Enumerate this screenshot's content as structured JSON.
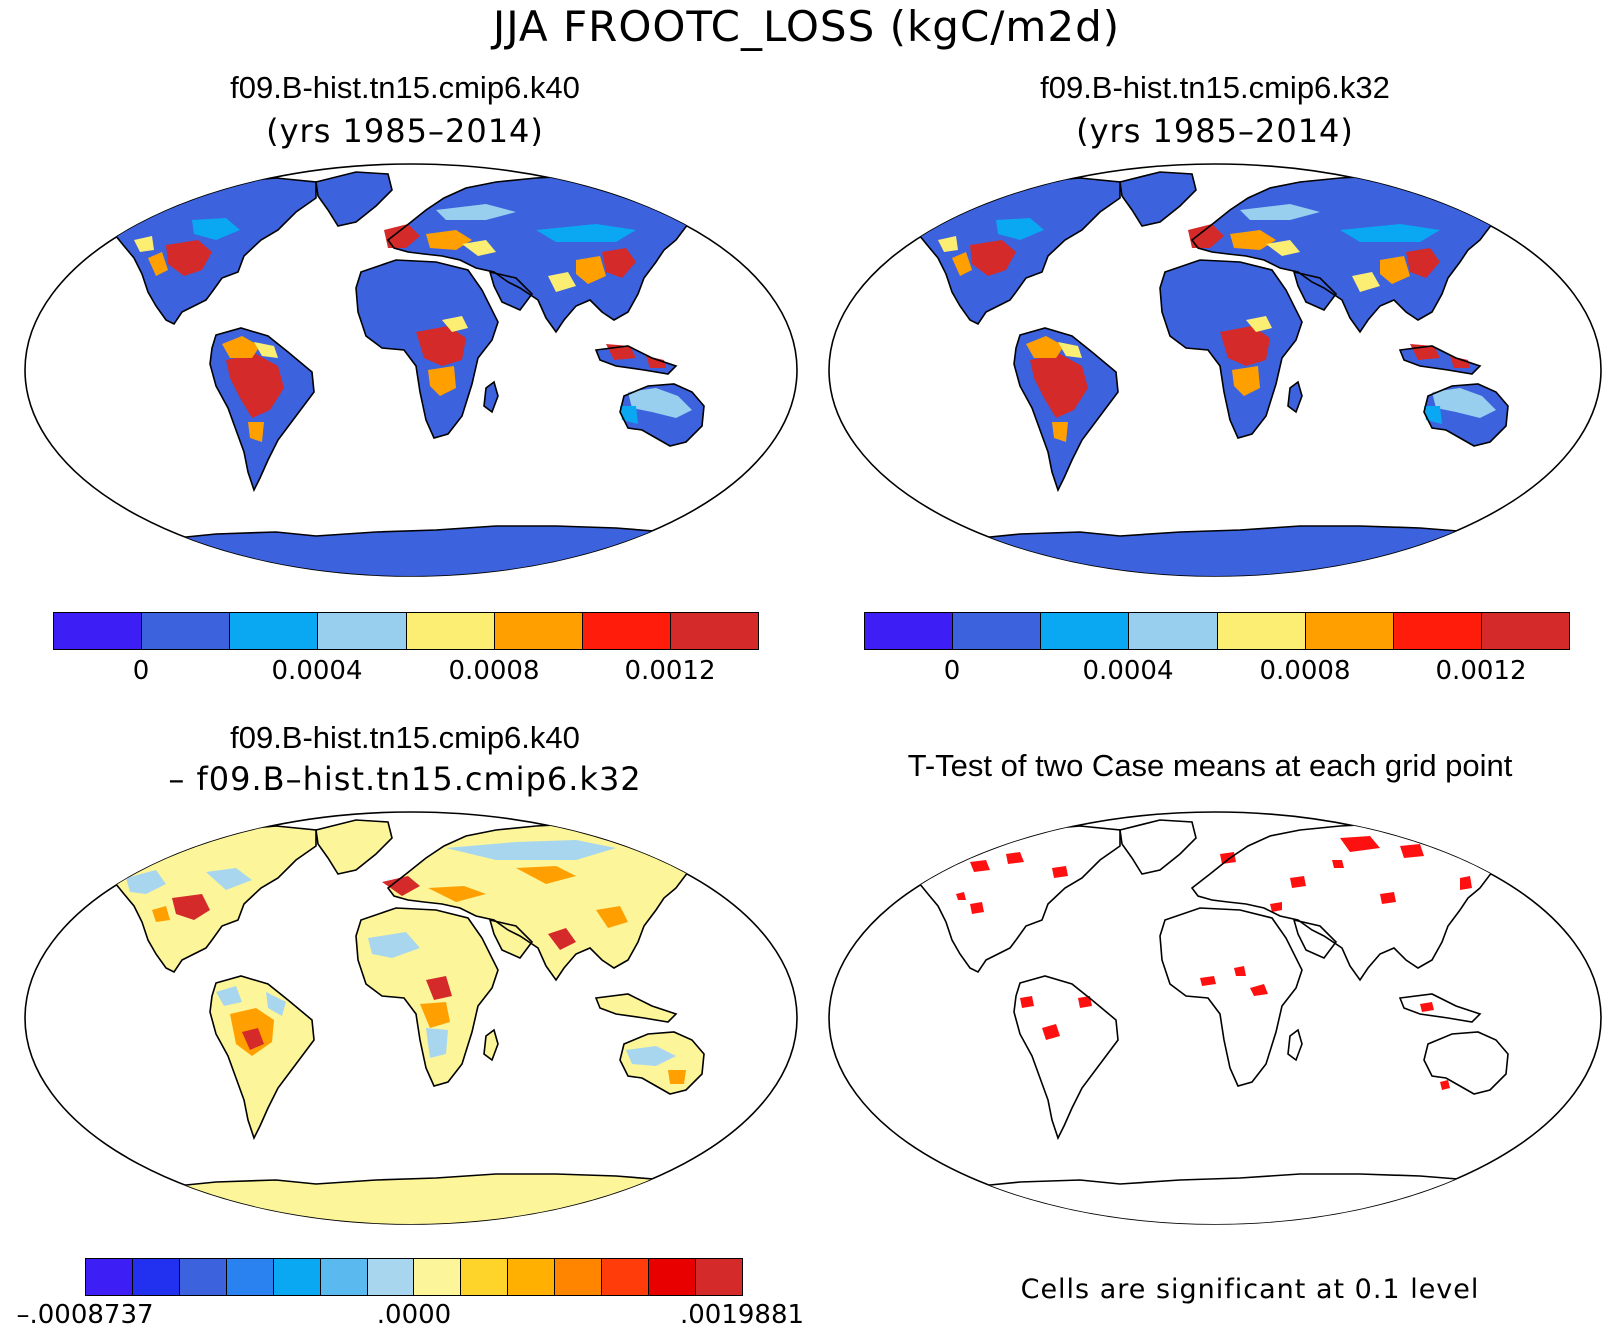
{
  "title": "JJA FROOTC_LOSS (kgC/m2d)",
  "panels": {
    "top_left": {
      "title": "f09.B-hist.tn15.cmip6.k40",
      "subtitle": "(yrs 1985–2014)"
    },
    "top_right": {
      "title": "f09.B-hist.tn15.cmip6.k32",
      "subtitle": "(yrs 1985–2014)"
    },
    "bottom_left": {
      "title": "f09.B-hist.tn15.cmip6.k40",
      "subtitle": "– f09.B–hist.tn15.cmip6.k32"
    },
    "bottom_right": {
      "title": "T-Test of two Case means at each grid point",
      "note": "Cells are significant at 0.1 level"
    }
  },
  "colorbar_main": {
    "colors": [
      "#3d1ef5",
      "#3d62dd",
      "#0aa8f2",
      "#98cfee",
      "#fbee73",
      "#ffa000",
      "#ff1c0a",
      "#d42a2a"
    ],
    "labels": [
      "0",
      "0.0004",
      "0.0008",
      "0.0012"
    ]
  },
  "colorbar_diff": {
    "colors": [
      "#3d1ef5",
      "#2230f0",
      "#3d62dd",
      "#2a82f0",
      "#0aa8f2",
      "#5ab9ee",
      "#a8d6ef",
      "#fcf59a",
      "#ffd42a",
      "#ffb000",
      "#ff8400",
      "#ff3c0a",
      "#e80000",
      "#d42a2a"
    ],
    "labels": [
      "–.0008737",
      ".0000",
      ".0019881"
    ]
  },
  "map_colors": {
    "ocean": "#ffffff",
    "low": "#3d62dd",
    "mid": "#0aa8f2",
    "light": "#98cfee",
    "yellow": "#fbee73",
    "orange": "#ffa000",
    "red": "#d42a2a",
    "diff_base": "#fcf59a",
    "diff_light": "#a8d6ef",
    "signif": "#ff1010"
  }
}
